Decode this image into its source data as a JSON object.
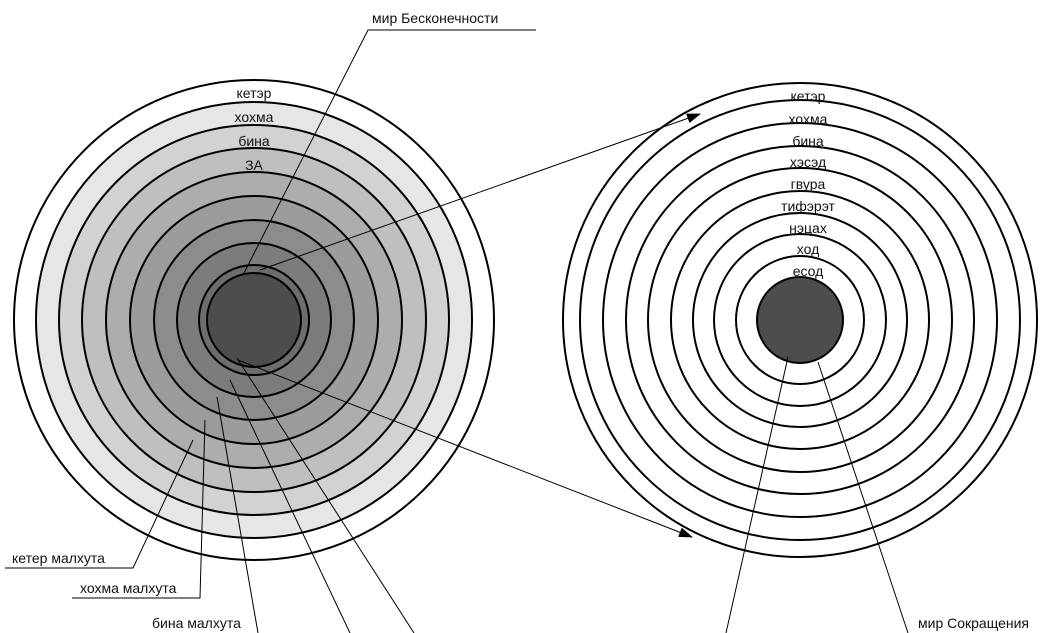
{
  "colors": {
    "line": "#000000",
    "core": "#4d4d4d",
    "background": "#ffffff",
    "left_fills": [
      "#ffffff",
      "#e6e6e6",
      "#d2d2d2",
      "#bfbfbf",
      "#adadad",
      "#9c9c9c",
      "#8c8c8c",
      "#7c7c7c",
      "#6d6d6d",
      "#5f5f5f"
    ]
  },
  "left_circle": {
    "ring_labels": [
      "кетэр",
      "хохма",
      "бина",
      "ЗА"
    ],
    "callouts": {
      "top": "мир Бесконечности",
      "keter_malkhut": "кетер малхута",
      "khokhma_malkhut": "хохма малхута",
      "bina_malkhut": "бина малхута"
    }
  },
  "right_circle": {
    "ring_labels": [
      "кетэр",
      "хохма",
      "бина",
      "хэсэд",
      "гвура",
      "тифэрэт",
      "нэцах",
      "ход",
      "есод"
    ],
    "callouts": {
      "bottom": "мир Сокращения"
    }
  }
}
